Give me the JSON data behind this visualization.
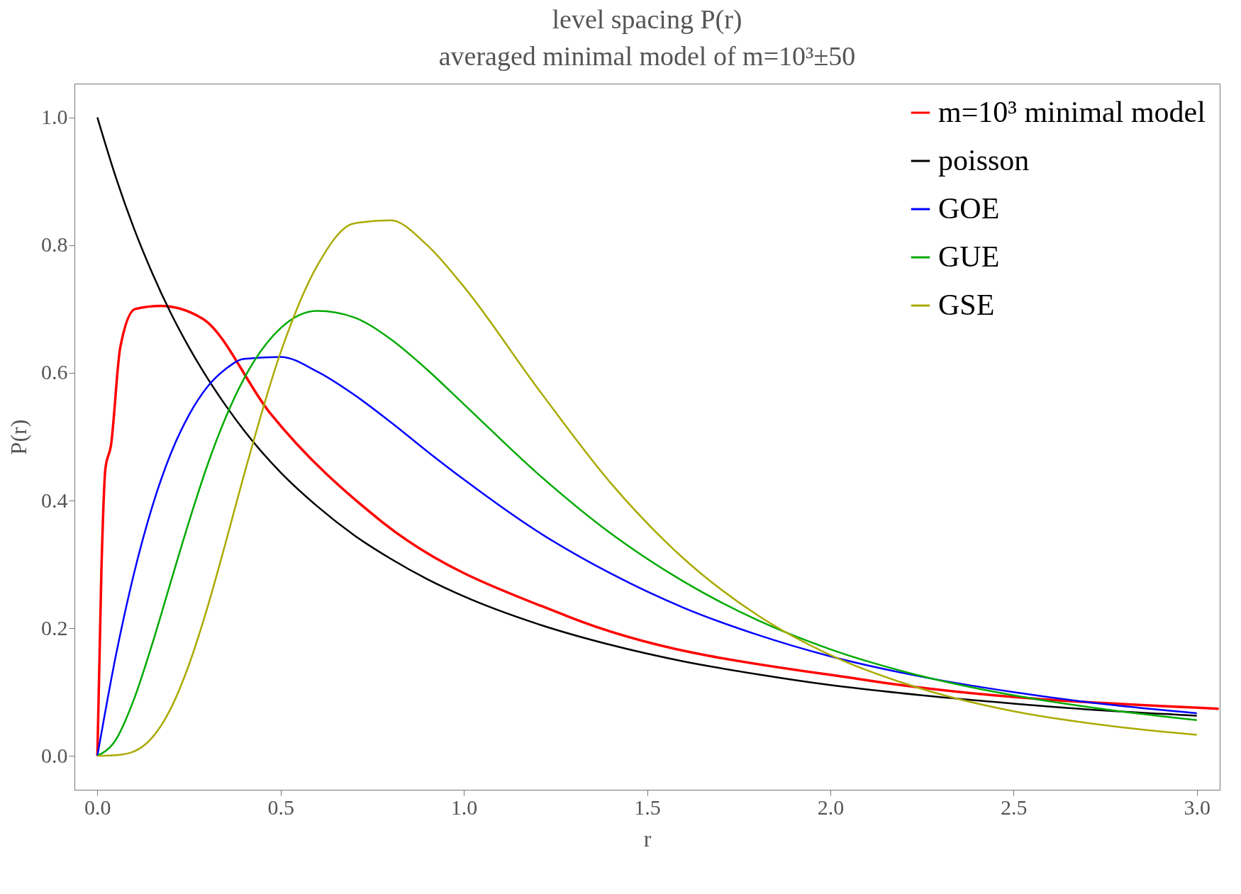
{
  "chart_data": {
    "type": "line",
    "title": "level spacing P(r)",
    "subtitle": "averaged minimal model of m=10³±50",
    "xlabel": "r",
    "ylabel": "P(r)",
    "xlim": [
      -0.0625,
      3.0625
    ],
    "ylim": [
      -0.053,
      1.053
    ],
    "xticks": [
      {
        "value": 0,
        "label": "0.0"
      },
      0.5,
      {
        "value": 1,
        "label": "1.0"
      },
      1.5,
      {
        "value": 2,
        "label": "2.0"
      },
      2.5,
      {
        "value": 3,
        "label": "3.0"
      }
    ],
    "yticks": [
      {
        "value": 0,
        "label": "0.0"
      },
      0.2,
      0.4,
      0.6,
      0.8,
      {
        "value": 1,
        "label": "1.0"
      }
    ],
    "grid": false,
    "legend": "top right",
    "marker": "none",
    "line_style": "solid",
    "x": [
      0,
      0.05,
      0.1,
      0.15,
      0.2,
      0.25,
      0.3,
      0.35,
      0.4,
      0.5,
      0.6,
      0.7,
      0.8,
      0.9,
      1.0,
      1.2,
      1.4,
      1.6,
      1.8,
      2.0,
      2.25,
      2.5,
      2.75,
      3.0
    ],
    "series": [
      {
        "name": "m=10³ minimal model",
        "color": "#ff0000",
        "x": [
          0,
          0.011,
          0.022,
          0.037,
          0.0625,
          0.103,
          0.172,
          0.287,
          0.47,
          0.776,
          1.282,
          2.106,
          3.06
        ],
        "values": [
          0,
          0.29,
          0.45,
          0.486,
          0.64,
          0.7,
          0.705,
          0.685,
          0.538,
          0.367,
          0.219,
          0.118,
          0.074
        ]
      },
      {
        "name": "poisson",
        "color": "#000000",
        "values": [
          1,
          0.907,
          0.826,
          0.756,
          0.694,
          0.64,
          0.592,
          0.549,
          0.51,
          0.444,
          0.391,
          0.346,
          0.309,
          0.277,
          0.25,
          0.207,
          0.174,
          0.148,
          0.128,
          0.111,
          0.095,
          0.082,
          0.071,
          0.063
        ]
      },
      {
        "name": "GOE",
        "color": "#0000ff",
        "values": [
          0,
          0.156,
          0.286,
          0.391,
          0.473,
          0.534,
          0.578,
          0.606,
          0.622,
          0.625,
          0.602,
          0.566,
          0.523,
          0.477,
          0.433,
          0.352,
          0.286,
          0.232,
          0.19,
          0.156,
          0.124,
          0.1,
          0.081,
          0.067
        ]
      },
      {
        "name": "GUE",
        "color": "#00aa00",
        "values": [
          0,
          0.025,
          0.089,
          0.176,
          0.272,
          0.367,
          0.455,
          0.53,
          0.591,
          0.67,
          0.697,
          0.687,
          0.653,
          0.605,
          0.551,
          0.443,
          0.349,
          0.273,
          0.213,
          0.167,
          0.125,
          0.095,
          0.073,
          0.056
        ]
      },
      {
        "name": "GSE",
        "color": "#aaaa00",
        "values": [
          0,
          0.001,
          0.007,
          0.029,
          0.074,
          0.143,
          0.232,
          0.334,
          0.44,
          0.632,
          0.768,
          0.834,
          0.839,
          0.8,
          0.735,
          0.577,
          0.428,
          0.309,
          0.221,
          0.158,
          0.105,
          0.07,
          0.048,
          0.033
        ]
      }
    ]
  }
}
